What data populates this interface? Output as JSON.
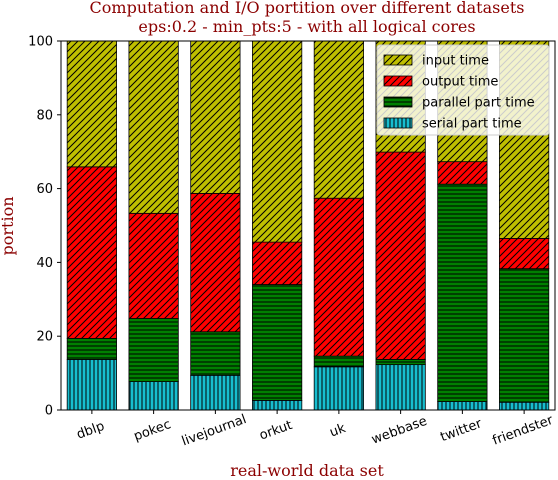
{
  "chart_data": {
    "type": "bar",
    "stacked": true,
    "title_line1": "Computation and I/O portition over different datasets",
    "title_line2": "eps:0.2 - min_pts:5 - with all logical cores",
    "xlabel": "real-world data set",
    "ylabel": "portion",
    "ylim": [
      0,
      100
    ],
    "yticks": [
      0,
      20,
      40,
      60,
      80,
      100
    ],
    "legend_position": "upper-right",
    "categories": [
      "dblp",
      "pokec",
      "livejournal",
      "orkut",
      "uk",
      "webbase",
      "twitter",
      "friendster"
    ],
    "series": [
      {
        "name": "serial part time",
        "color": "#17becf",
        "hatch": "vertical",
        "values": [
          13.7,
          7.7,
          9.4,
          2.6,
          11.7,
          12.3,
          2.3,
          2.1
        ]
      },
      {
        "name": "parallel part time",
        "color": "#008000",
        "hatch": "horizontal",
        "values": [
          5.7,
          17.1,
          11.8,
          31.4,
          2.9,
          1.4,
          58.9,
          36.2
        ]
      },
      {
        "name": "output time",
        "color": "#ff0000",
        "hatch": "diagonal",
        "values": [
          46.5,
          28.5,
          37.5,
          11.5,
          42.8,
          56.2,
          6.1,
          8.2
        ]
      },
      {
        "name": "input time",
        "color": "#bfbf00",
        "hatch": "diagonal",
        "values": [
          34.1,
          46.7,
          41.3,
          54.5,
          42.6,
          30.1,
          32.7,
          53.5
        ]
      }
    ],
    "legend_order": [
      "input time",
      "output time",
      "parallel part time",
      "serial part time"
    ]
  }
}
